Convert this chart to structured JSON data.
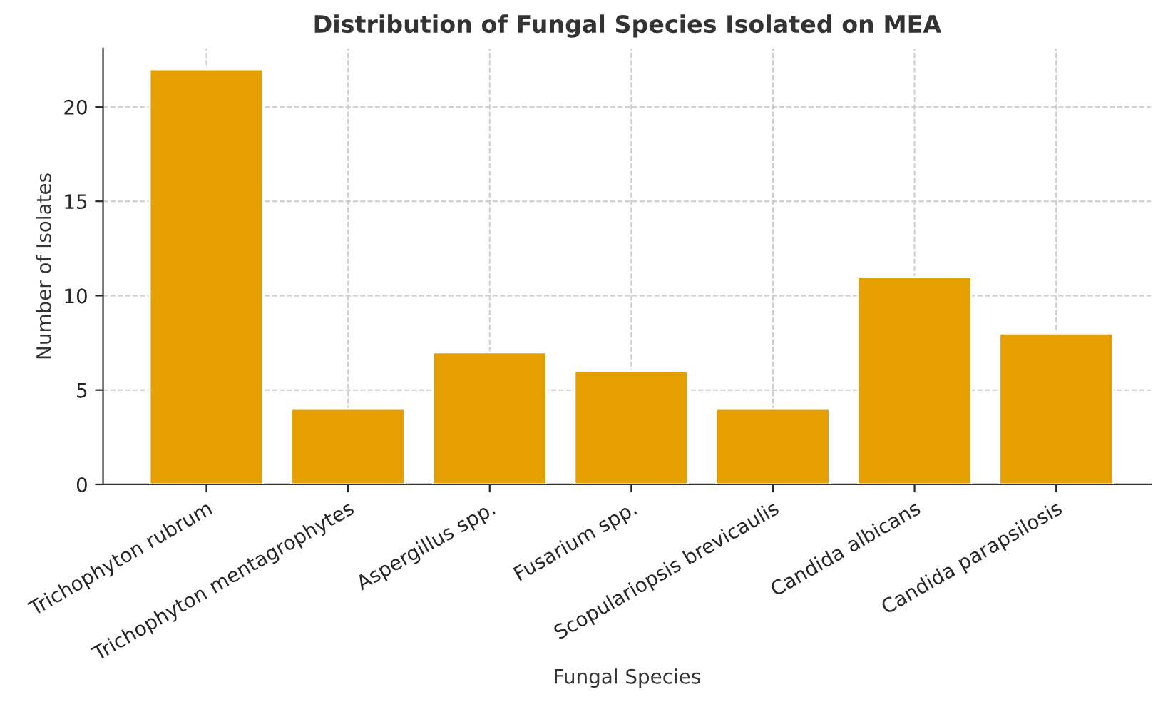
{
  "chart_data": {
    "type": "bar",
    "title": "Distribution of Fungal Species Isolated on MEA",
    "xlabel": "Fungal Species",
    "ylabel": "Number of Isolates",
    "categories": [
      "Trichophyton rubrum",
      "Trichophyton mentagrophytes",
      "Aspergillus spp.",
      "Fusarium spp.",
      "Scopulariopsis brevicaulis",
      "Candida albicans",
      "Candida parapsilosis"
    ],
    "values": [
      22,
      4,
      7,
      6,
      4,
      11,
      8
    ],
    "color": "#e69f00",
    "ylim": [
      0,
      23.1
    ],
    "yticks": [
      0,
      5,
      10,
      15,
      20
    ],
    "grid": true,
    "line_style": "dashed"
  }
}
